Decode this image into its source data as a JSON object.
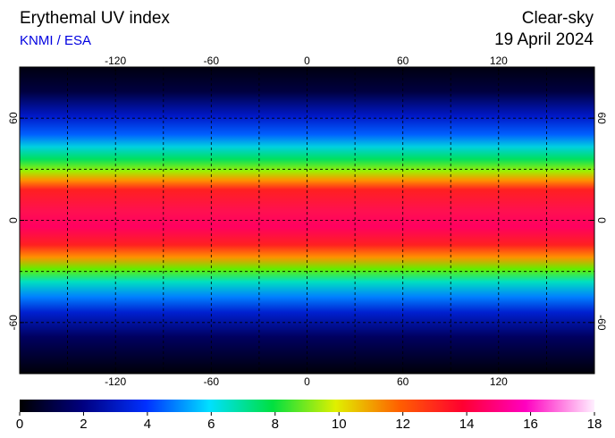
{
  "header": {
    "title": "Erythemal UV index",
    "source": "KNMI / ESA",
    "condition": "Clear-sky",
    "date": "19 April 2024"
  },
  "map": {
    "lon_range": [
      -180,
      180
    ],
    "lat_range": [
      -90,
      90
    ],
    "lon_ticks": [
      -120,
      -60,
      0,
      60,
      120
    ],
    "lat_ticks": [
      60,
      0,
      -60
    ]
  },
  "colorbar": {
    "range": [
      0,
      18
    ],
    "ticks": [
      0,
      2,
      4,
      6,
      8,
      10,
      12,
      14,
      16,
      18
    ]
  }
}
